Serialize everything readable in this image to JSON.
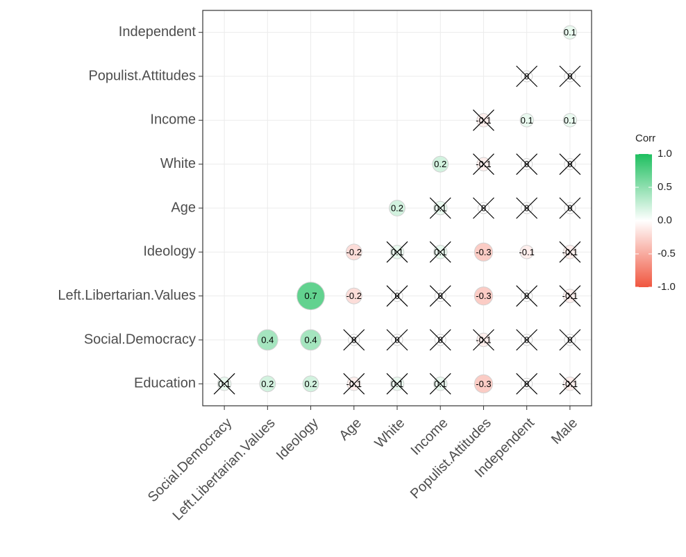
{
  "chart_data": {
    "type": "corrplot",
    "method": "circle",
    "x_categories": [
      "Social.Democracy",
      "Left.Libertarian.Values",
      "Ideology",
      "Age",
      "White",
      "Income",
      "Populist.Attitudes",
      "Independent",
      "Male"
    ],
    "y_categories": [
      "Education",
      "Social.Democracy",
      "Left.Libertarian.Values",
      "Ideology",
      "Age",
      "White",
      "Income",
      "Populist.Attitudes",
      "Independent"
    ],
    "cells": [
      {
        "x": "Social.Democracy",
        "y": "Education",
        "value": 0.1,
        "crossed": true
      },
      {
        "x": "Left.Libertarian.Values",
        "y": "Education",
        "value": 0.2,
        "crossed": false
      },
      {
        "x": "Ideology",
        "y": "Education",
        "value": 0.2,
        "crossed": false
      },
      {
        "x": "Age",
        "y": "Education",
        "value": -0.1,
        "crossed": true
      },
      {
        "x": "White",
        "y": "Education",
        "value": 0.1,
        "crossed": true
      },
      {
        "x": "Income",
        "y": "Education",
        "value": 0.1,
        "crossed": true
      },
      {
        "x": "Populist.Attitudes",
        "y": "Education",
        "value": -0.3,
        "crossed": false
      },
      {
        "x": "Independent",
        "y": "Education",
        "value": 0,
        "crossed": true
      },
      {
        "x": "Male",
        "y": "Education",
        "value": -0.1,
        "crossed": true
      },
      {
        "x": "Left.Libertarian.Values",
        "y": "Social.Democracy",
        "value": 0.4,
        "crossed": false
      },
      {
        "x": "Ideology",
        "y": "Social.Democracy",
        "value": 0.4,
        "crossed": false
      },
      {
        "x": "Age",
        "y": "Social.Democracy",
        "value": 0,
        "crossed": true
      },
      {
        "x": "White",
        "y": "Social.Democracy",
        "value": 0,
        "crossed": true
      },
      {
        "x": "Income",
        "y": "Social.Democracy",
        "value": 0,
        "crossed": true
      },
      {
        "x": "Populist.Attitudes",
        "y": "Social.Democracy",
        "value": -0.1,
        "crossed": true
      },
      {
        "x": "Independent",
        "y": "Social.Democracy",
        "value": 0,
        "crossed": true
      },
      {
        "x": "Male",
        "y": "Social.Democracy",
        "value": 0,
        "crossed": true
      },
      {
        "x": "Ideology",
        "y": "Left.Libertarian.Values",
        "value": 0.7,
        "crossed": false
      },
      {
        "x": "Age",
        "y": "Left.Libertarian.Values",
        "value": -0.2,
        "crossed": false
      },
      {
        "x": "White",
        "y": "Left.Libertarian.Values",
        "value": 0,
        "crossed": true
      },
      {
        "x": "Income",
        "y": "Left.Libertarian.Values",
        "value": 0,
        "crossed": true
      },
      {
        "x": "Populist.Attitudes",
        "y": "Left.Libertarian.Values",
        "value": -0.3,
        "crossed": false
      },
      {
        "x": "Independent",
        "y": "Left.Libertarian.Values",
        "value": 0,
        "crossed": true
      },
      {
        "x": "Male",
        "y": "Left.Libertarian.Values",
        "value": -0.1,
        "crossed": true
      },
      {
        "x": "Age",
        "y": "Ideology",
        "value": -0.2,
        "crossed": false
      },
      {
        "x": "White",
        "y": "Ideology",
        "value": 0.1,
        "crossed": true
      },
      {
        "x": "Income",
        "y": "Ideology",
        "value": 0.1,
        "crossed": true
      },
      {
        "x": "Populist.Attitudes",
        "y": "Ideology",
        "value": -0.3,
        "crossed": false
      },
      {
        "x": "Independent",
        "y": "Ideology",
        "value": -0.1,
        "crossed": false
      },
      {
        "x": "Male",
        "y": "Ideology",
        "value": -0.1,
        "crossed": true
      },
      {
        "x": "White",
        "y": "Age",
        "value": 0.2,
        "crossed": false
      },
      {
        "x": "Income",
        "y": "Age",
        "value": 0.1,
        "crossed": true
      },
      {
        "x": "Populist.Attitudes",
        "y": "Age",
        "value": 0,
        "crossed": true
      },
      {
        "x": "Independent",
        "y": "Age",
        "value": 0,
        "crossed": true
      },
      {
        "x": "Male",
        "y": "Age",
        "value": 0,
        "crossed": true
      },
      {
        "x": "Income",
        "y": "White",
        "value": 0.2,
        "crossed": false
      },
      {
        "x": "Populist.Attitudes",
        "y": "White",
        "value": -0.1,
        "crossed": true
      },
      {
        "x": "Independent",
        "y": "White",
        "value": 0,
        "crossed": true
      },
      {
        "x": "Male",
        "y": "White",
        "value": 0,
        "crossed": true
      },
      {
        "x": "Populist.Attitudes",
        "y": "Income",
        "value": -0.1,
        "crossed": true
      },
      {
        "x": "Independent",
        "y": "Income",
        "value": 0.1,
        "crossed": false
      },
      {
        "x": "Male",
        "y": "Income",
        "value": 0.1,
        "crossed": false
      },
      {
        "x": "Independent",
        "y": "Populist.Attitudes",
        "value": 0,
        "crossed": true
      },
      {
        "x": "Male",
        "y": "Populist.Attitudes",
        "value": 0,
        "crossed": true
      },
      {
        "x": "Male",
        "y": "Independent",
        "value": 0.1,
        "crossed": false
      }
    ],
    "legend_title": "Corr",
    "color_low": "#f0563f",
    "color_mid": "#ffffff",
    "color_high": "#1ebf5f",
    "clim": [
      -1,
      1
    ],
    "cticks": [
      {
        "value": 1,
        "label": "1.0"
      },
      {
        "value": 0.5,
        "label": "0.5"
      },
      {
        "value": 0,
        "label": "0.0"
      },
      {
        "value": -0.5,
        "label": "-0.5"
      },
      {
        "value": -1,
        "label": "-1.0"
      }
    ],
    "grid": true
  }
}
